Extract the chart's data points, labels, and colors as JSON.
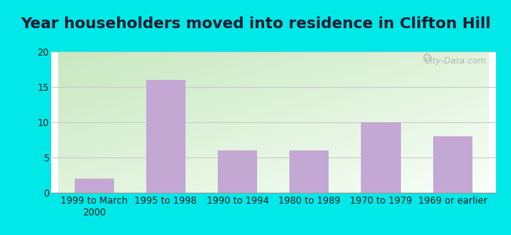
{
  "title": "Year householders moved into residence in Clifton Hill",
  "categories": [
    "1999 to March\n2000",
    "1995 to 1998",
    "1990 to 1994",
    "1980 to 1989",
    "1970 to 1979",
    "1969 or earlier"
  ],
  "values": [
    2,
    16,
    6,
    6,
    10,
    8
  ],
  "bar_color": "#c4a8d4",
  "ylim": [
    0,
    20
  ],
  "yticks": [
    0,
    5,
    10,
    15,
    20
  ],
  "background_outer": "#00e8e8",
  "grad_color_topleft": "#c8e8c0",
  "grad_color_bottomright": "#f8fff8",
  "grid_color": "#cccccc",
  "title_fontsize": 14,
  "tick_fontsize": 8.5,
  "watermark_text": "City-Data.com"
}
